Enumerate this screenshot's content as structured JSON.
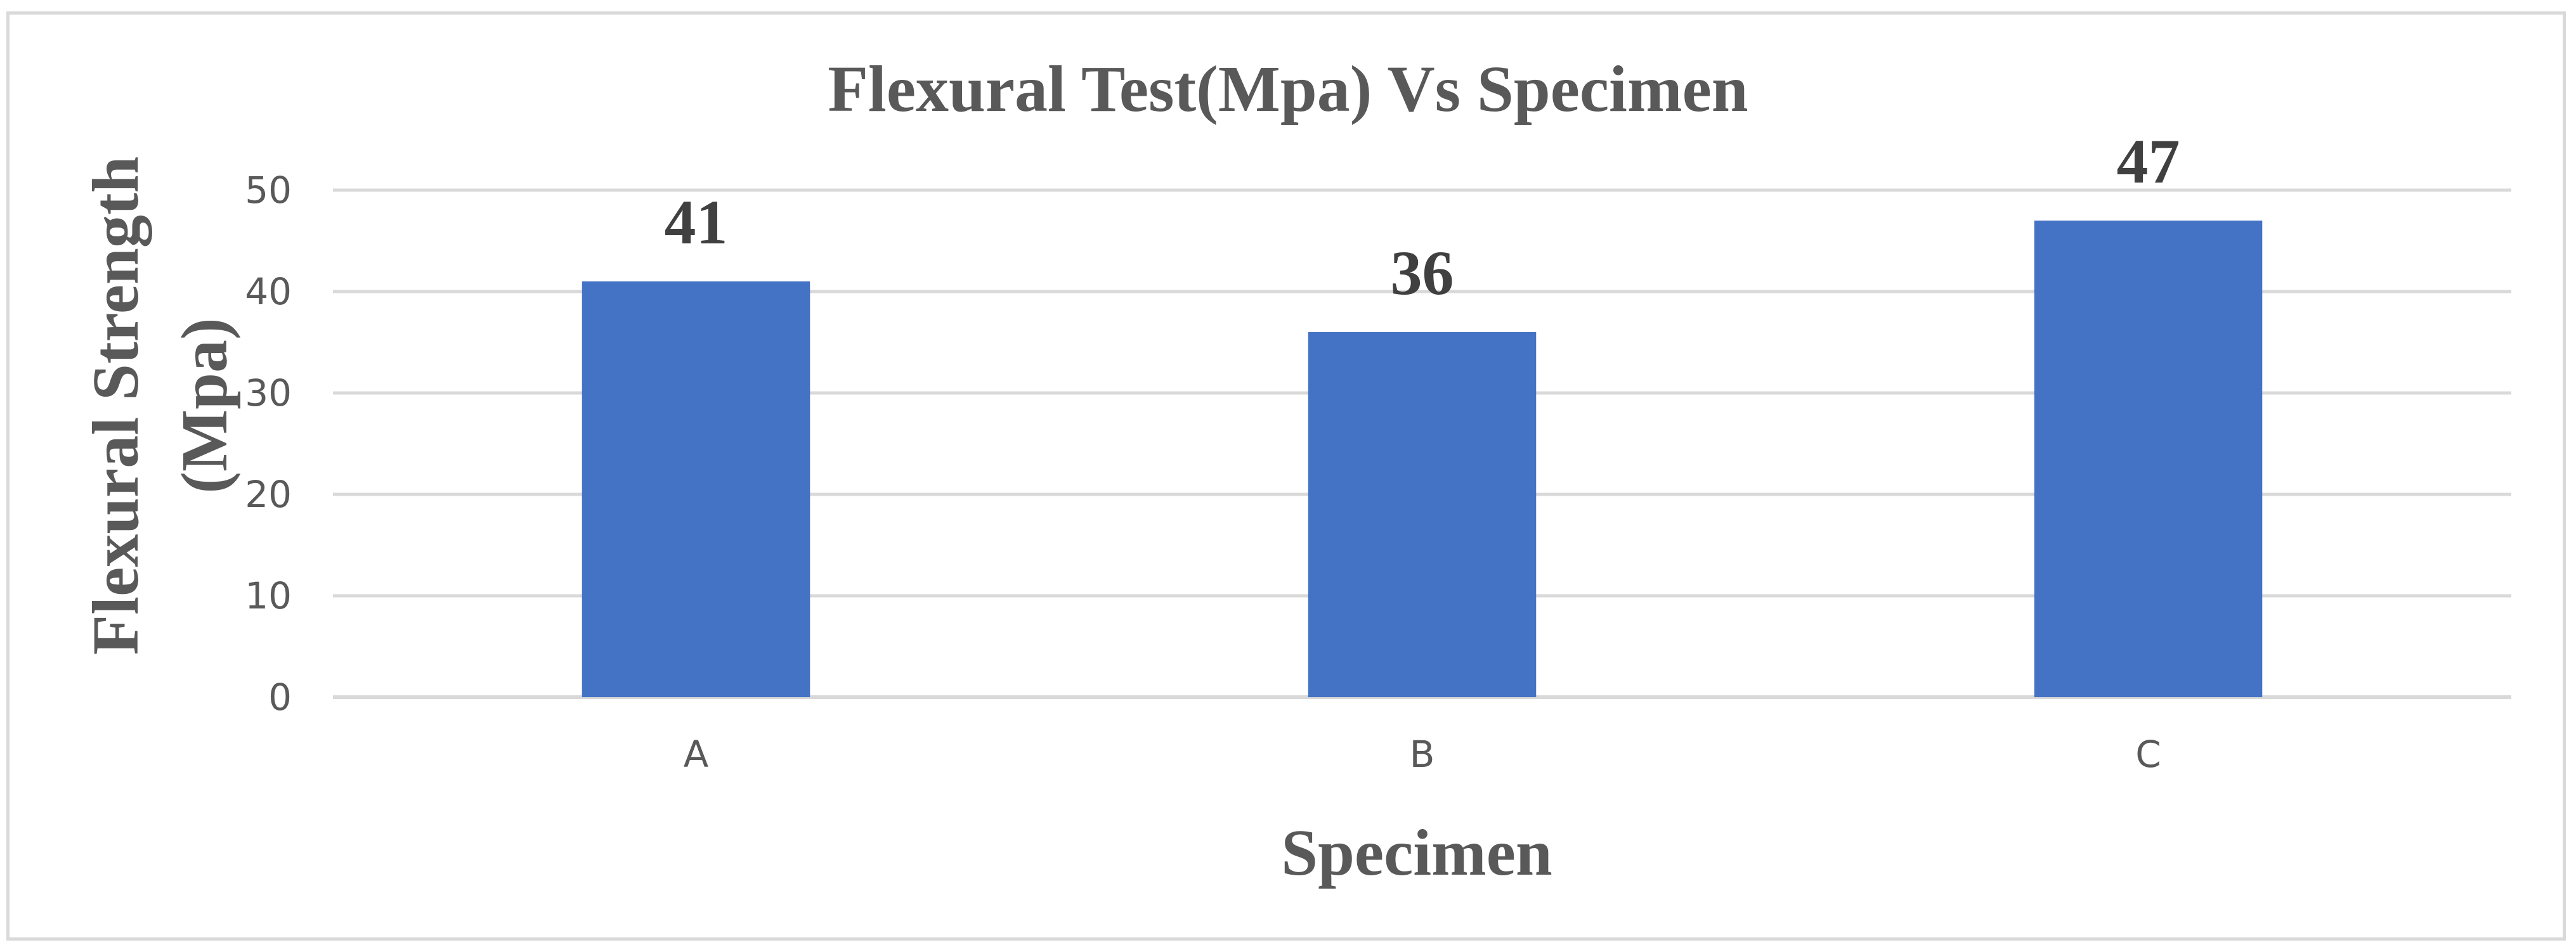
{
  "chart_data": {
    "type": "bar",
    "title": "Flexural Test(Mpa) Vs Specimen",
    "xlabel": "Specimen",
    "ylabel_lines": [
      "Flexural Strength",
      "(Mpa)"
    ],
    "categories": [
      "A",
      "B",
      "C"
    ],
    "values": [
      41,
      36,
      47
    ],
    "data_labels": [
      "41",
      "36",
      "47"
    ],
    "ylim": [
      0,
      50
    ],
    "yticks": [
      "0",
      "10",
      "20",
      "30",
      "40",
      "50"
    ],
    "grid": true,
    "legend": "none",
    "bar_color": "#4472c4",
    "grid_color": "#d9d9d9"
  }
}
